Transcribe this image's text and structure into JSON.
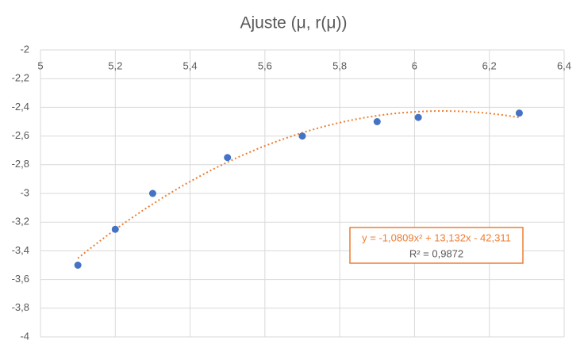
{
  "chart_data": {
    "type": "scatter",
    "title": "Ajuste (μ, r(μ))",
    "series": [
      {
        "color": "#4472c4",
        "x": [
          5.1,
          5.2,
          5.3,
          5.5,
          5.7,
          5.9,
          6.01,
          6.28
        ],
        "values": [
          -3.5,
          -3.25,
          -3.0,
          -2.75,
          -2.6,
          -2.5,
          -2.47,
          -2.44
        ]
      }
    ],
    "trendline": {
      "color": "#ed7d31",
      "coefficients": [
        -1.0809,
        13.132,
        -42.311
      ],
      "equation": "y = -1,0809x² + 13,132x - 42,311",
      "r2_label": "R² = 0,9872"
    },
    "xlim": [
      5,
      6.4
    ],
    "xticks": [
      5,
      {
        "value": 5.2,
        "label": "5,2"
      },
      {
        "value": 5.4,
        "label": "5,4"
      },
      {
        "value": 5.6,
        "label": "5,6"
      },
      {
        "value": 5.8,
        "label": "5,8"
      },
      6,
      {
        "value": 6.2,
        "label": "6,2"
      },
      {
        "value": 6.4,
        "label": "6,4"
      }
    ],
    "ylim": [
      -4,
      -2
    ],
    "yticks": [
      -2,
      {
        "value": -2.2,
        "label": "-2,2"
      },
      {
        "value": -2.4,
        "label": "-2,4"
      },
      {
        "value": -2.6,
        "label": "-2,6"
      },
      {
        "value": -2.8,
        "label": "-2,8"
      },
      -3,
      {
        "value": -3.2,
        "label": "-3,2"
      },
      {
        "value": -3.4,
        "label": "-3,4"
      },
      {
        "value": -3.6,
        "label": "-3,6"
      },
      {
        "value": -3.8,
        "label": "-3,8"
      },
      -4
    ],
    "grid": true
  }
}
